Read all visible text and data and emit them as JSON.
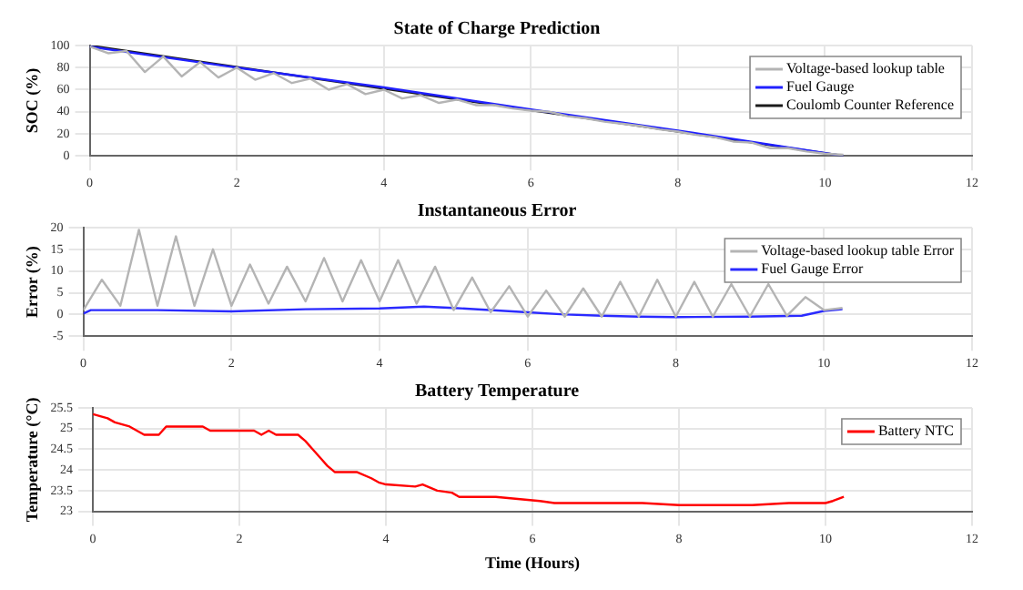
{
  "chart_data": [
    {
      "type": "line",
      "title": "State of Charge Prediction",
      "ylabel": "SOC (%)",
      "xlim": [
        0,
        12
      ],
      "xticks": [
        0,
        2,
        4,
        6,
        8,
        10,
        12
      ],
      "ylim": [
        0,
        100
      ],
      "yticks": [
        0,
        20,
        40,
        60,
        80,
        100
      ],
      "grid": true,
      "legend": "top right",
      "series": [
        {
          "name": "Voltage-based lookup table",
          "color": "#b4b4b4",
          "x": [
            0,
            0.25,
            0.5,
            0.75,
            1,
            1.25,
            1.5,
            1.75,
            2,
            2.25,
            2.5,
            2.75,
            3,
            3.25,
            3.5,
            3.75,
            4,
            4.25,
            4.5,
            4.75,
            5,
            5.25,
            5.5,
            5.75,
            6,
            6.25,
            6.5,
            6.75,
            7,
            7.25,
            7.5,
            7.75,
            8,
            8.25,
            8.5,
            8.75,
            9,
            9.25,
            9.5,
            9.75,
            10,
            10.25
          ],
          "values": [
            99,
            93,
            95,
            76,
            90,
            72,
            85,
            71,
            80,
            69,
            75,
            66,
            70,
            60,
            65,
            56,
            60,
            52,
            55,
            48,
            51,
            46,
            46,
            43,
            41,
            40,
            36,
            34,
            31,
            29,
            27,
            24,
            22,
            19,
            17,
            13,
            12,
            7,
            7,
            4,
            2,
            1
          ]
        },
        {
          "name": "Fuel Gauge",
          "color": "#2020ff",
          "x": [
            0,
            2,
            4,
            6,
            8,
            10.25
          ],
          "values": [
            99,
            80,
            62,
            42,
            23,
            0
          ]
        },
        {
          "name": "Coulomb Counter Reference",
          "color": "#1a1a1a",
          "x": [
            0,
            10.25
          ],
          "values": [
            100,
            0
          ]
        }
      ]
    },
    {
      "type": "line",
      "title": "Instantaneous Error",
      "ylabel": "Error (%)",
      "xlim": [
        0,
        12
      ],
      "xticks": [
        0,
        2,
        4,
        6,
        8,
        10,
        12
      ],
      "ylim": [
        -5,
        20
      ],
      "yticks": [
        -5,
        0,
        5,
        10,
        15,
        20
      ],
      "grid": true,
      "legend": "top right",
      "series": [
        {
          "name": "Voltage-based lookup table Error",
          "color": "#b4b4b4",
          "x": [
            0,
            0.25,
            0.5,
            0.75,
            1,
            1.25,
            1.5,
            1.75,
            2,
            2.25,
            2.5,
            2.75,
            3,
            3.25,
            3.5,
            3.75,
            4,
            4.25,
            4.5,
            4.75,
            5,
            5.25,
            5.5,
            5.75,
            6,
            6.25,
            6.5,
            6.75,
            7,
            7.25,
            7.5,
            7.75,
            8,
            8.25,
            8.5,
            8.75,
            9,
            9.25,
            9.5,
            9.75,
            10,
            10.25
          ],
          "values": [
            1,
            8,
            2,
            19.5,
            2,
            18,
            2,
            15,
            2,
            11.5,
            2.5,
            11,
            3,
            13,
            3,
            12.5,
            3,
            12.5,
            2.5,
            11,
            1,
            8.5,
            0.5,
            6.5,
            -0.5,
            5.5,
            -0.5,
            6,
            -0.5,
            7.5,
            -0.5,
            8,
            -0.5,
            7.5,
            -0.5,
            7,
            -0.5,
            7,
            -0.3,
            4,
            1,
            1.5
          ]
        },
        {
          "name": "Fuel Gauge Error",
          "color": "#2a2aff",
          "x": [
            0,
            0.1,
            1,
            2,
            3,
            4,
            4.6,
            5,
            6,
            6.5,
            7,
            7.5,
            8,
            9,
            9.7,
            10,
            10.25
          ],
          "values": [
            0.2,
            1,
            1,
            0.7,
            1.2,
            1.4,
            1.8,
            1.5,
            0.5,
            0,
            -0.3,
            -0.5,
            -0.6,
            -0.5,
            -0.3,
            0.8,
            1.2
          ]
        }
      ]
    },
    {
      "type": "line",
      "title": "Battery Temperature",
      "xlabel": "Time (Hours)",
      "ylabel": "Temperature (°C)",
      "xlim": [
        0,
        12
      ],
      "xticks": [
        0,
        2,
        4,
        6,
        8,
        10,
        12
      ],
      "ylim": [
        23,
        25.5
      ],
      "yticks": [
        23,
        23.5,
        24,
        24.5,
        25,
        25.5
      ],
      "grid": true,
      "legend": "top right",
      "series": [
        {
          "name": "Battery NTC",
          "color": "#ff0000",
          "x": [
            0,
            0.1,
            0.2,
            0.3,
            0.5,
            0.6,
            0.7,
            0.9,
            1,
            1.5,
            1.6,
            2.2,
            2.3,
            2.4,
            2.5,
            2.8,
            2.9,
            3,
            3.1,
            3.2,
            3.3,
            3.6,
            3.8,
            3.9,
            4,
            4.4,
            4.5,
            4.7,
            4.9,
            5,
            5.5,
            5.8,
            6.1,
            6.3,
            7,
            7.5,
            8,
            9,
            9.5,
            10,
            10.1,
            10.25
          ],
          "values": [
            25.35,
            25.3,
            25.25,
            25.15,
            25.05,
            24.95,
            24.85,
            24.85,
            25.05,
            25.05,
            24.95,
            24.95,
            24.85,
            24.95,
            24.85,
            24.85,
            24.7,
            24.5,
            24.3,
            24.1,
            23.95,
            23.95,
            23.8,
            23.7,
            23.65,
            23.6,
            23.65,
            23.5,
            23.45,
            23.35,
            23.35,
            23.3,
            23.25,
            23.2,
            23.2,
            23.2,
            23.15,
            23.15,
            23.2,
            23.2,
            23.25,
            23.35
          ]
        }
      ]
    }
  ]
}
